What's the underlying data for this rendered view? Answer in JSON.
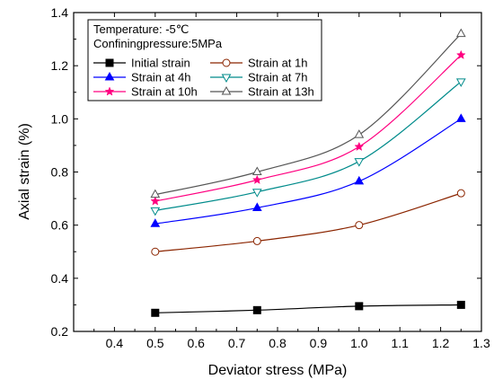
{
  "chart_data": {
    "type": "line",
    "xlabel": "Deviator stress (MPa)",
    "ylabel": "Axial strain (%)",
    "xlim": [
      0.3,
      1.3
    ],
    "ylim": [
      0.2,
      1.4
    ],
    "x_ticks": [
      "0.4",
      "0.5",
      "0.6",
      "0.7",
      "0.8",
      "0.9",
      "1.0",
      "1.1",
      "1.2",
      "1.3"
    ],
    "y_ticks": [
      "0.2",
      "0.4",
      "0.6",
      "0.8",
      "1.0",
      "1.2",
      "1.4"
    ],
    "x_tick_values": [
      0.4,
      0.5,
      0.6,
      0.7,
      0.8,
      0.9,
      1.0,
      1.1,
      1.2,
      1.3
    ],
    "y_tick_values": [
      0.2,
      0.4,
      0.6,
      0.8,
      1.0,
      1.2,
      1.4
    ],
    "legend_location": "top-left",
    "annotations": [
      "Temperature: -5℃",
      "Confiningpressure:5MPa"
    ],
    "grid": false,
    "x": [
      0.5,
      0.75,
      1.0,
      1.25
    ],
    "series": [
      {
        "name": "Initial strain",
        "values": [
          0.27,
          0.28,
          0.295,
          0.3
        ],
        "color": "#000000",
        "marker": "square-filled"
      },
      {
        "name": "Strain at 1h",
        "values": [
          0.5,
          0.54,
          0.6,
          0.72
        ],
        "color": "#8b2500",
        "marker": "circle-open"
      },
      {
        "name": "Strain at 4h",
        "values": [
          0.605,
          0.665,
          0.765,
          1.0
        ],
        "color": "#0000ff",
        "marker": "triangle-up-filled"
      },
      {
        "name": "Strain at 7h",
        "values": [
          0.655,
          0.725,
          0.84,
          1.14
        ],
        "color": "#008b8b",
        "marker": "triangle-down-open"
      },
      {
        "name": "Strain at 10h",
        "values": [
          0.69,
          0.77,
          0.895,
          1.24
        ],
        "color": "#ff0080",
        "marker": "star"
      },
      {
        "name": "Strain at 13h",
        "values": [
          0.715,
          0.8,
          0.94,
          1.32
        ],
        "color": "#555555",
        "marker": "triangle-up-open"
      }
    ]
  }
}
